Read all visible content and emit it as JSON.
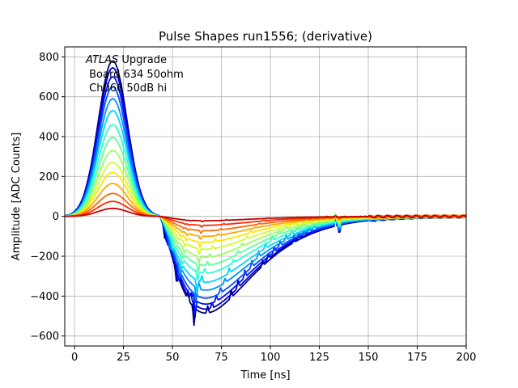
{
  "chart_data": {
    "type": "line",
    "title": "Pulse Shapes run1556; (derivative)",
    "xlabel": "Time [ns]",
    "ylabel": "Amplitude [ADC Counts]",
    "xlim": [
      -5,
      200
    ],
    "ylim": [
      -650,
      850
    ],
    "xticks": [
      0,
      25,
      50,
      75,
      100,
      125,
      150,
      175,
      200
    ],
    "xtick_labels": [
      "0",
      "25",
      "50",
      "75",
      "100",
      "125",
      "150",
      "175",
      "200"
    ],
    "yticks": [
      -600,
      -400,
      -200,
      0,
      200,
      400,
      600,
      800
    ],
    "ytick_labels": [
      "−600",
      "−400",
      "−200",
      "0",
      "200",
      "400",
      "600",
      "800"
    ],
    "grid": true,
    "annotation": {
      "italic_part": "ATLAS",
      "line1_rest": " Upgrade",
      "line2": " Board 634 50ohm",
      "line3": " Ch066 50dB hi"
    },
    "series": [
      {
        "peak": 780,
        "trough": -485,
        "color": "#00007f"
      },
      {
        "peak": 745,
        "trough": -465,
        "color": "#0000c4"
      },
      {
        "peak": 700,
        "trough": -440,
        "color": "#0010ff"
      },
      {
        "peak": 650,
        "trough": -410,
        "color": "#0050ff"
      },
      {
        "peak": 590,
        "trough": -370,
        "color": "#0090ff"
      },
      {
        "peak": 530,
        "trough": -330,
        "color": "#00d4ff"
      },
      {
        "peak": 460,
        "trough": -285,
        "color": "#29ffce"
      },
      {
        "peak": 395,
        "trough": -245,
        "color": "#5dff9a"
      },
      {
        "peak": 330,
        "trough": -205,
        "color": "#9aff5d"
      },
      {
        "peak": 270,
        "trough": -165,
        "color": "#ceff29"
      },
      {
        "peak": 220,
        "trough": -130,
        "color": "#ffe500"
      },
      {
        "peak": 165,
        "trough": -100,
        "color": "#ffa700"
      },
      {
        "peak": 115,
        "trough": -72,
        "color": "#ff6800"
      },
      {
        "peak": 75,
        "trough": -45,
        "color": "#ff2900"
      },
      {
        "peak": 40,
        "trough": -22,
        "color": "#c40000"
      }
    ]
  }
}
